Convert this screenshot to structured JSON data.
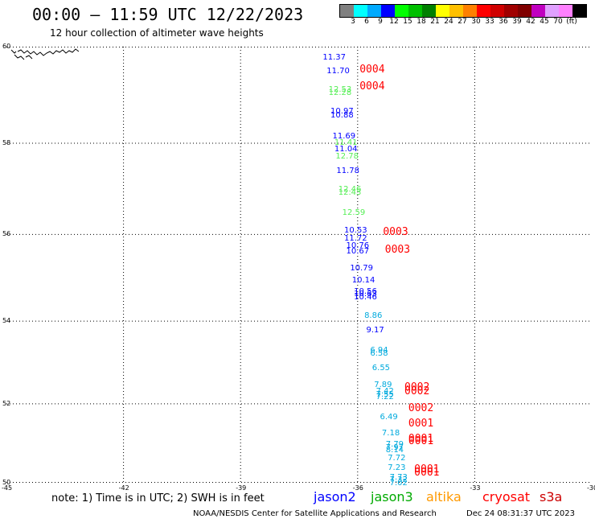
{
  "header": {
    "title": "00:00 — 11:59 UTC 12/22/2023",
    "subtitle": "12 hour collection of altimeter wave heights"
  },
  "colorbar": {
    "colors": [
      "#808080",
      "#00ffff",
      "#00aaff",
      "#0000ff",
      "#00ff00",
      "#00c000",
      "#008000",
      "#ffff00",
      "#ffc000",
      "#ff8000",
      "#ff0000",
      "#d00000",
      "#a00000",
      "#800000",
      "#c000c0",
      "#e0a0ff",
      "#ff80ff",
      "#000000"
    ],
    "labels": [
      "3",
      "6",
      "9",
      "12",
      "15",
      "18",
      "21",
      "24",
      "27",
      "30",
      "33",
      "36",
      "39",
      "42",
      "45",
      "70",
      "(ft)"
    ]
  },
  "map": {
    "lon_ticks": [
      "-45",
      "-42",
      "-39",
      "-36",
      "-33",
      "-30"
    ],
    "lat_ticks": [
      "60",
      "58",
      "56",
      "54",
      "52",
      "50"
    ],
    "lon_range": [
      -45,
      -30
    ],
    "lat_range": [
      50,
      60
    ]
  },
  "observations": [
    {
      "text": "11.37",
      "lon": -36.6,
      "lat": 59.78,
      "color": "#0000ff"
    },
    {
      "text": "11.70",
      "lon": -36.5,
      "lat": 59.49,
      "color": "#0000ff"
    },
    {
      "text": "12.53",
      "lon": -36.45,
      "lat": 59.12,
      "color": "#55ee55"
    },
    {
      "text": "12.28",
      "lon": -36.45,
      "lat": 59.04,
      "color": "#55ee55"
    },
    {
      "text": "10.97",
      "lon": -36.4,
      "lat": 58.66,
      "color": "#0000ff"
    },
    {
      "text": "10.88",
      "lon": -36.4,
      "lat": 58.58,
      "color": "#0000ff"
    },
    {
      "text": "11.69",
      "lon": -36.35,
      "lat": 58.14,
      "color": "#0000ff"
    },
    {
      "text": "11.41",
      "lon": -36.3,
      "lat": 58.0,
      "color": "#55ee55"
    },
    {
      "text": "11.04",
      "lon": -36.3,
      "lat": 57.87,
      "color": "#0000ff"
    },
    {
      "text": "12.78",
      "lon": -36.27,
      "lat": 57.7,
      "color": "#55ee55"
    },
    {
      "text": "11.78",
      "lon": -36.25,
      "lat": 57.4,
      "color": "#0000ff"
    },
    {
      "text": "12.46",
      "lon": -36.2,
      "lat": 56.99,
      "color": "#55ee55"
    },
    {
      "text": "12.43",
      "lon": -36.2,
      "lat": 56.92,
      "color": "#55ee55"
    },
    {
      "text": "12.59",
      "lon": -36.1,
      "lat": 56.47,
      "color": "#55ee55"
    },
    {
      "text": "10.53",
      "lon": -36.05,
      "lat": 56.08,
      "color": "#0000ff"
    },
    {
      "text": "11.72",
      "lon": -36.05,
      "lat": 55.9,
      "color": "#0000ff"
    },
    {
      "text": "10.76",
      "lon": -36.0,
      "lat": 55.73,
      "color": "#0000ff"
    },
    {
      "text": "10.67",
      "lon": -36.0,
      "lat": 55.6,
      "color": "#0000ff"
    },
    {
      "text": "10.79",
      "lon": -35.9,
      "lat": 55.23,
      "color": "#0000ff"
    },
    {
      "text": "10.14",
      "lon": -35.85,
      "lat": 54.94,
      "color": "#0000ff"
    },
    {
      "text": "10.56",
      "lon": -35.8,
      "lat": 54.69,
      "color": "#0000ff"
    },
    {
      "text": "10.63",
      "lon": -35.8,
      "lat": 54.62,
      "color": "#0000ff"
    },
    {
      "text": "10.46",
      "lon": -35.8,
      "lat": 54.55,
      "color": "#0000ff"
    },
    {
      "text": "8.86",
      "lon": -35.6,
      "lat": 54.12,
      "color": "#00aadd"
    },
    {
      "text": "9.17",
      "lon": -35.55,
      "lat": 53.77,
      "color": "#0000ff"
    },
    {
      "text": "6.94",
      "lon": -35.45,
      "lat": 53.29,
      "color": "#00aadd"
    },
    {
      "text": "6.58",
      "lon": -35.45,
      "lat": 53.22,
      "color": "#00aadd"
    },
    {
      "text": "6.55",
      "lon": -35.4,
      "lat": 52.86,
      "color": "#00aadd"
    },
    {
      "text": "7.89",
      "lon": -35.35,
      "lat": 52.46,
      "color": "#00aadd"
    },
    {
      "text": "7.42",
      "lon": -35.3,
      "lat": 52.3,
      "color": "#00aadd"
    },
    {
      "text": "7.55",
      "lon": -35.3,
      "lat": 52.22,
      "color": "#00aadd"
    },
    {
      "text": "7.22",
      "lon": -35.3,
      "lat": 52.15,
      "color": "#00aadd"
    },
    {
      "text": "6.49",
      "lon": -35.2,
      "lat": 51.65,
      "color": "#00aadd"
    },
    {
      "text": "7.18",
      "lon": -35.15,
      "lat": 51.26,
      "color": "#00aadd"
    },
    {
      "text": "7.79",
      "lon": -35.05,
      "lat": 50.96,
      "color": "#00aadd"
    },
    {
      "text": "7.97",
      "lon": -35.05,
      "lat": 50.89,
      "color": "#00aadd"
    },
    {
      "text": "8.14",
      "lon": -35.05,
      "lat": 50.82,
      "color": "#00aadd"
    },
    {
      "text": "7.72",
      "lon": -35.0,
      "lat": 50.63,
      "color": "#00aadd"
    },
    {
      "text": "7.23",
      "lon": -35.0,
      "lat": 50.38,
      "color": "#00aadd"
    },
    {
      "text": "7.73",
      "lon": -34.95,
      "lat": 50.13,
      "color": "#00aadd"
    },
    {
      "text": "7.32",
      "lon": -34.95,
      "lat": 50.06,
      "color": "#00aadd"
    },
    {
      "text": "7.02",
      "lon": -34.95,
      "lat": 49.98,
      "color": "#00aadd"
    }
  ],
  "pass_labels": [
    {
      "text": "0004",
      "lon": -35.95,
      "lat": 59.52
    },
    {
      "text": "0004",
      "lon": -35.95,
      "lat": 59.18
    },
    {
      "text": "0003",
      "lon": -35.35,
      "lat": 56.04
    },
    {
      "text": "0003",
      "lon": -35.3,
      "lat": 55.64
    },
    {
      "text": "0002",
      "lon": -34.8,
      "lat": 52.4
    },
    {
      "text": "0002",
      "lon": -34.8,
      "lat": 52.3
    },
    {
      "text": "0002",
      "lon": -34.7,
      "lat": 51.87
    },
    {
      "text": "0001",
      "lon": -34.7,
      "lat": 51.5
    },
    {
      "text": "0001",
      "lon": -34.7,
      "lat": 51.12
    },
    {
      "text": "0001",
      "lon": -34.7,
      "lat": 51.04
    },
    {
      "text": "0001",
      "lon": -34.55,
      "lat": 50.33
    },
    {
      "text": "0001",
      "lon": -34.55,
      "lat": 50.25
    }
  ],
  "note": "note: 1) Time is in UTC; 2) SWH is in feet",
  "legend": [
    {
      "label": "jason2",
      "color": "#0000ff"
    },
    {
      "label": "jason3",
      "color": "#00aa00"
    },
    {
      "label": "altika",
      "color": "#ff9900"
    },
    {
      "label": "cryosat",
      "color": "#ff0000"
    },
    {
      "label": "s3a",
      "color": "#cc0000"
    }
  ],
  "footer": {
    "source": "NOAA/NESDIS Center for Satellite Applications and Research",
    "timestamp": "Dec 24 08:31:37 UTC 2023"
  }
}
